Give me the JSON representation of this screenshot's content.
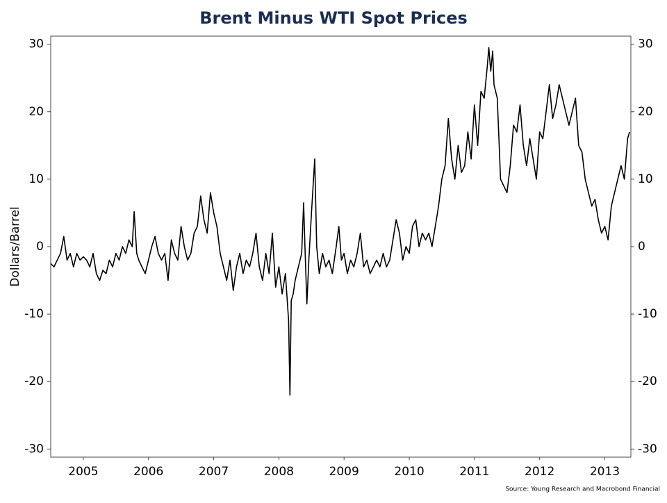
{
  "chart_data": {
    "type": "line",
    "title": "Brent Minus WTI Spot Prices",
    "y_label": "Dollars/Barrel",
    "source": "Source: Young Research and Macrobond Financial",
    "color": "#000000",
    "mirror_y_axis": true,
    "x": [
      2005.0,
      2005.05,
      2005.1,
      2005.15,
      2005.2,
      2005.25,
      2005.3,
      2005.35,
      2005.4,
      2005.45,
      2005.5,
      2005.55,
      2005.6,
      2005.65,
      2005.7,
      2005.75,
      2005.8,
      2005.85,
      2005.9,
      2005.95,
      2006.0,
      2006.05,
      2006.1,
      2006.15,
      2006.2,
      2006.25,
      2006.28,
      2006.32,
      2006.35,
      2006.4,
      2006.45,
      2006.5,
      2006.55,
      2006.6,
      2006.65,
      2006.7,
      2006.75,
      2006.8,
      2006.85,
      2006.9,
      2006.95,
      2007.0,
      2007.05,
      2007.1,
      2007.15,
      2007.2,
      2007.25,
      2007.3,
      2007.35,
      2007.4,
      2007.45,
      2007.5,
      2007.55,
      2007.6,
      2007.65,
      2007.7,
      2007.75,
      2007.8,
      2007.85,
      2007.9,
      2007.95,
      2008.0,
      2008.05,
      2008.1,
      2008.15,
      2008.2,
      2008.25,
      2008.3,
      2008.35,
      2008.4,
      2008.45,
      2008.5,
      2008.55,
      2008.6,
      2008.65,
      2008.67,
      2008.69,
      2008.72,
      2008.75,
      2008.8,
      2008.85,
      2008.88,
      2008.9,
      2008.93,
      2008.96,
      2009.0,
      2009.05,
      2009.08,
      2009.12,
      2009.17,
      2009.22,
      2009.27,
      2009.32,
      2009.38,
      2009.42,
      2009.46,
      2009.5,
      2009.55,
      2009.6,
      2009.65,
      2009.7,
      2009.75,
      2009.8,
      2009.85,
      2009.9,
      2009.95,
      2010.0,
      2010.05,
      2010.1,
      2010.15,
      2010.2,
      2010.3,
      2010.35,
      2010.4,
      2010.45,
      2010.5,
      2010.55,
      2010.6,
      2010.65,
      2010.7,
      2010.75,
      2010.8,
      2010.85,
      2010.9,
      2010.95,
      2011.0,
      2011.05,
      2011.1,
      2011.15,
      2011.2,
      2011.25,
      2011.3,
      2011.35,
      2011.4,
      2011.45,
      2011.5,
      2011.55,
      2011.6,
      2011.65,
      2011.7,
      2011.72,
      2011.75,
      2011.78,
      2011.8,
      2011.85,
      2011.88,
      2011.9,
      2011.95,
      2012.0,
      2012.05,
      2012.1,
      2012.15,
      2012.2,
      2012.25,
      2012.3,
      2012.35,
      2012.4,
      2012.45,
      2012.5,
      2012.55,
      2012.6,
      2012.65,
      2012.7,
      2012.75,
      2012.8,
      2012.85,
      2012.9,
      2012.95,
      2013.0,
      2013.05,
      2013.1,
      2013.15,
      2013.2,
      2013.25,
      2013.3,
      2013.35,
      2013.4,
      2013.45,
      2013.5,
      2013.55,
      2013.6,
      2013.65,
      2013.7,
      2013.75,
      2013.8,
      2013.85,
      2013.88
    ],
    "values": [
      -2.5,
      -3,
      -2,
      -1,
      1.5,
      -2,
      -1,
      -3,
      -1,
      -2,
      -1.5,
      -2,
      -3,
      -1,
      -4,
      -5,
      -3.5,
      -4,
      -2,
      -3,
      -1,
      -2,
      0,
      -1,
      1,
      0,
      5.2,
      -1,
      -2,
      -3,
      -4,
      -2,
      0,
      1.5,
      -1,
      -2,
      -1,
      -5,
      1,
      -1,
      -2,
      3,
      0,
      -2,
      -1,
      2,
      3,
      7.5,
      4,
      2,
      8,
      5,
      3,
      -1,
      -3,
      -5,
      -2,
      -6.5,
      -3,
      -1,
      -4,
      -2,
      -3,
      -1,
      2,
      -3,
      -5,
      -1,
      -4,
      2,
      -6,
      -3,
      -7,
      -4,
      -11,
      -22,
      -8,
      -7,
      -5,
      -3,
      -1,
      6.5,
      0,
      -8.5,
      -2,
      5,
      13,
      0,
      -4,
      -1,
      -3,
      -2,
      -4,
      0,
      3,
      -2,
      -1,
      -4,
      -2,
      -3,
      -1,
      2,
      -3,
      -2,
      -4,
      -3,
      -2,
      -3,
      -1,
      -3,
      -2,
      4,
      2,
      -2,
      0,
      -1,
      3,
      4,
      0,
      2,
      1,
      2,
      0,
      3,
      6,
      10,
      12,
      19,
      13,
      10,
      15,
      11,
      12,
      17,
      13,
      21,
      15,
      23,
      22,
      27,
      29.5,
      26,
      29,
      24,
      22,
      15,
      10,
      9,
      8,
      12,
      18,
      17,
      21,
      15,
      12,
      16,
      13,
      10,
      17,
      16,
      20,
      24,
      19,
      21,
      24,
      22,
      20,
      18,
      20,
      22,
      15,
      14,
      10,
      8,
      6,
      7,
      4,
      2,
      3,
      1,
      6,
      8,
      10,
      12,
      10,
      16,
      17
    ],
    "xlim": [
      2005.0,
      2013.9
    ],
    "xticks": [
      {
        "value": 2005.5,
        "label": "2005"
      },
      {
        "value": 2006.5,
        "label": "2006"
      },
      {
        "value": 2007.5,
        "label": "2007"
      },
      {
        "value": 2008.5,
        "label": "2008"
      },
      {
        "value": 2009.5,
        "label": "2009"
      },
      {
        "value": 2010.5,
        "label": "2010"
      },
      {
        "value": 2011.5,
        "label": "2011"
      },
      {
        "value": 2012.5,
        "label": "2012"
      },
      {
        "value": 2013.5,
        "label": "2013"
      }
    ],
    "ylim": [
      -31.2,
      31.2
    ],
    "yticks": [
      -30,
      -20,
      -10,
      0,
      10,
      20,
      30
    ]
  }
}
